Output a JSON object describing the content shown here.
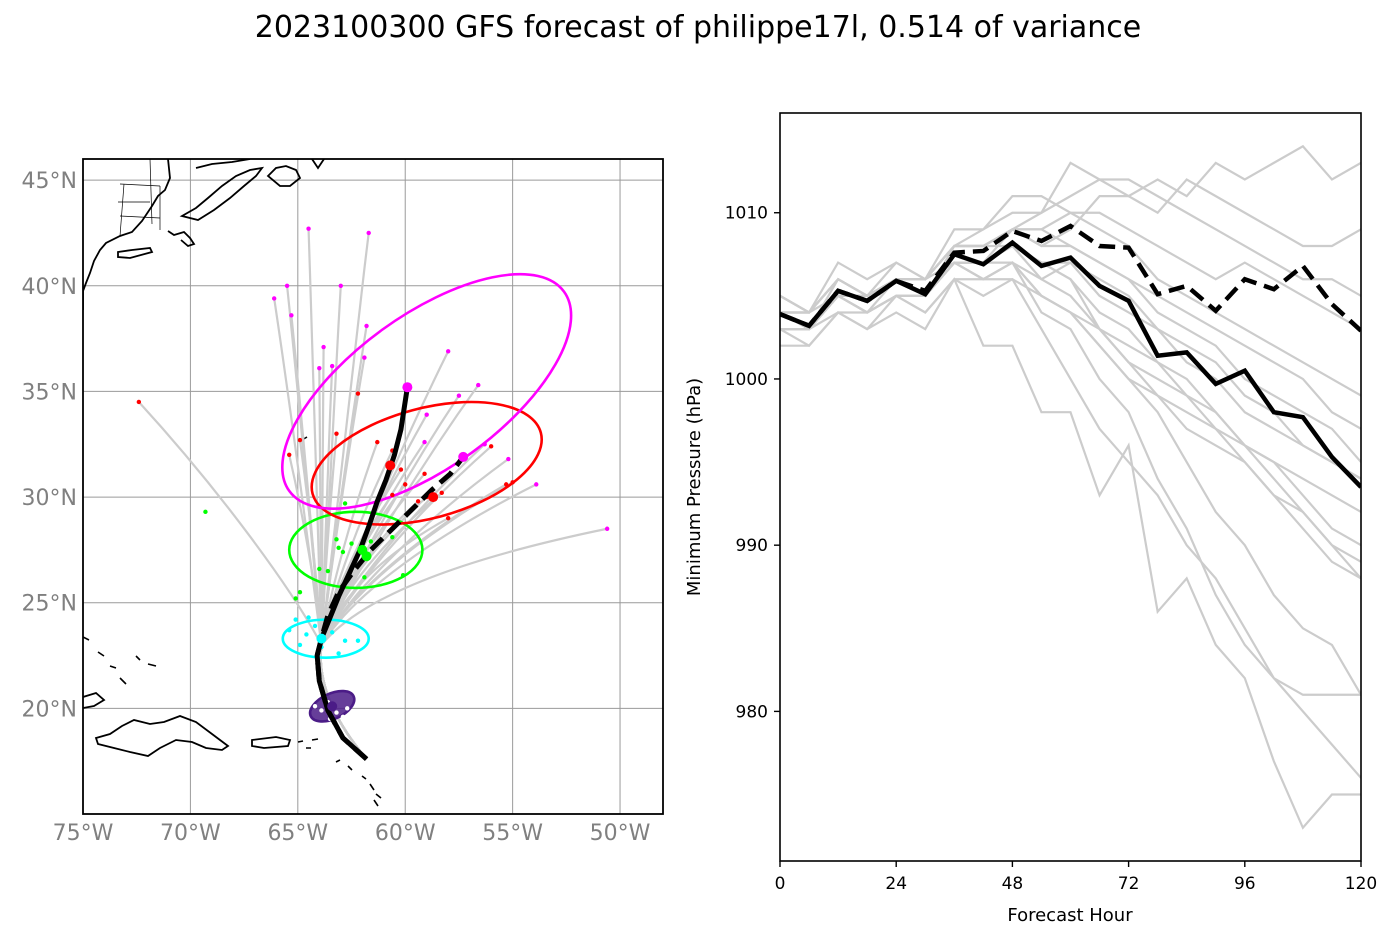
{
  "title": "2023100300 GFS forecast of philippe17l, 0.514 of variance",
  "colors": {
    "ensemble": "#cccccc",
    "mean": "#000000",
    "land": "#000000",
    "grid": "#9a9a9a",
    "tick_text": "#808080",
    "f24": "#4b1c87",
    "f48": "#00ffff",
    "f72": "#00ff00",
    "f96": "#ff0000",
    "f120": "#ff00ff"
  },
  "chart_data": [
    {
      "type": "scatter",
      "subtype": "track-map",
      "projection": "PlateCarree",
      "xlim": [
        -75,
        -48
      ],
      "ylim": [
        15,
        46
      ],
      "x_ticks": [
        -75,
        -70,
        -65,
        -60,
        -55,
        -50
      ],
      "x_tick_labels": [
        "75°W",
        "70°W",
        "65°W",
        "60°W",
        "55°W",
        "50°W"
      ],
      "y_ticks": [
        20,
        25,
        30,
        35,
        40,
        45
      ],
      "y_tick_labels": [
        "20°N",
        "25°N",
        "30°N",
        "35°N",
        "40°N",
        "45°N"
      ],
      "grid": true,
      "mean_tracks": [
        {
          "style": "solid",
          "points": [
            [
              -61.8,
              17.6
            ],
            [
              -62.9,
              18.6
            ],
            [
              -63.6,
              19.9
            ],
            [
              -64.0,
              21.3
            ],
            [
              -64.1,
              22.5
            ],
            [
              -63.9,
              23.3
            ],
            [
              -63.5,
              24.3
            ],
            [
              -63.1,
              25.3
            ],
            [
              -62.6,
              26.4
            ],
            [
              -62.1,
              27.5
            ],
            [
              -61.7,
              28.6
            ],
            [
              -61.3,
              29.8
            ],
            [
              -60.9,
              30.8
            ],
            [
              -60.5,
              32.0
            ],
            [
              -60.2,
              33.2
            ],
            [
              -59.9,
              35.2
            ]
          ]
        },
        {
          "style": "dashed",
          "points": [
            [
              -61.8,
              17.6
            ],
            [
              -62.9,
              18.6
            ],
            [
              -63.6,
              19.9
            ],
            [
              -64.0,
              21.3
            ],
            [
              -64.1,
              22.5
            ],
            [
              -63.9,
              23.3
            ],
            [
              -63.6,
              24.4
            ],
            [
              -63.1,
              25.5
            ],
            [
              -62.4,
              26.5
            ],
            [
              -61.6,
              27.5
            ],
            [
              -60.7,
              28.4
            ],
            [
              -59.8,
              29.3
            ],
            [
              -58.8,
              30.3
            ],
            [
              -57.9,
              31.1
            ],
            [
              -57.3,
              31.9
            ]
          ]
        }
      ],
      "mean_points": [
        {
          "hour": 24,
          "color": "#4b1c87",
          "lonlat": [
            -63.4,
            20.1
          ]
        },
        {
          "hour": 48,
          "color": "#00ffff",
          "lonlat": [
            -63.9,
            23.3
          ]
        },
        {
          "hour": 72,
          "color": "#00ff00",
          "lonlat": [
            -62.0,
            27.5
          ]
        },
        {
          "hour": 72,
          "color": "#00ff00",
          "lonlat": [
            -61.8,
            27.2
          ]
        },
        {
          "hour": 96,
          "color": "#ff0000",
          "lonlat": [
            -60.7,
            31.5
          ]
        },
        {
          "hour": 96,
          "color": "#ff0000",
          "lonlat": [
            -58.7,
            30.0
          ]
        },
        {
          "hour": 120,
          "color": "#ff00ff",
          "lonlat": [
            -59.9,
            35.2
          ]
        },
        {
          "hour": 120,
          "color": "#ff00ff",
          "lonlat": [
            -57.3,
            31.9
          ]
        }
      ],
      "ellipses": [
        {
          "hour": 24,
          "color": "#4b1c87",
          "center": [
            -63.4,
            20.1
          ],
          "semi_axes_deg": [
            1.1,
            0.6
          ],
          "rotation_deg": -25,
          "filled": true
        },
        {
          "hour": 48,
          "color": "#00ffff",
          "center": [
            -63.7,
            23.3
          ],
          "semi_axes_deg": [
            2.0,
            0.9
          ],
          "rotation_deg": 0,
          "filled": false
        },
        {
          "hour": 72,
          "color": "#00ff00",
          "center": [
            -62.3,
            27.5
          ],
          "semi_axes_deg": [
            3.1,
            1.8
          ],
          "rotation_deg": 0,
          "filled": false
        },
        {
          "hour": 96,
          "color": "#ff0000",
          "center": [
            -59.0,
            31.6
          ],
          "semi_axes_deg": [
            5.5,
            2.6
          ],
          "rotation_deg": -15,
          "filled": false
        },
        {
          "hour": 120,
          "color": "#ff00ff",
          "center": [
            -59.0,
            35.0
          ],
          "semi_axes_deg": [
            7.9,
            3.6
          ],
          "rotation_deg": -36,
          "filled": false
        }
      ],
      "member_points": [
        {
          "hour": 24,
          "color": "#4b1c87",
          "points": [
            [
              -64.1,
              20.6
            ],
            [
              -63.6,
              20.3
            ],
            [
              -63.2,
              19.8
            ],
            [
              -62.9,
              19.6
            ],
            [
              -64.2,
              20.1
            ],
            [
              -63.5,
              19.5
            ],
            [
              -62.7,
              20.0
            ],
            [
              -63.9,
              19.9
            ]
          ]
        },
        {
          "hour": 48,
          "color": "#00ffff",
          "points": [
            [
              -65.4,
              23.7
            ],
            [
              -65.1,
              24.2
            ],
            [
              -64.6,
              23.5
            ],
            [
              -64.2,
              23.9
            ],
            [
              -63.9,
              22.9
            ],
            [
              -63.4,
              23.6
            ],
            [
              -62.8,
              23.2
            ],
            [
              -62.2,
              23.2
            ],
            [
              -64.9,
              23.0
            ],
            [
              -63.1,
              22.6
            ],
            [
              -64.5,
              24.3
            ],
            [
              -63.6,
              24.0
            ]
          ]
        },
        {
          "hour": 72,
          "color": "#00ff00",
          "points": [
            [
              -69.3,
              29.3
            ],
            [
              -65.1,
              25.2
            ],
            [
              -64.9,
              25.5
            ],
            [
              -64.0,
              26.6
            ],
            [
              -63.6,
              26.5
            ],
            [
              -63.2,
              28.0
            ],
            [
              -63.1,
              27.6
            ],
            [
              -62.8,
              29.7
            ],
            [
              -62.5,
              27.8
            ],
            [
              -61.9,
              26.2
            ],
            [
              -60.6,
              28.1
            ],
            [
              -60.1,
              26.3
            ],
            [
              -62.9,
              27.4
            ],
            [
              -61.6,
              27.9
            ]
          ]
        },
        {
          "hour": 96,
          "color": "#ff0000",
          "points": [
            [
              -72.4,
              34.5
            ],
            [
              -65.4,
              32.0
            ],
            [
              -64.9,
              32.7
            ],
            [
              -63.2,
              33.0
            ],
            [
              -62.2,
              34.9
            ],
            [
              -61.3,
              32.6
            ],
            [
              -60.6,
              32.2
            ],
            [
              -60.2,
              31.3
            ],
            [
              -60.0,
              30.6
            ],
            [
              -59.4,
              29.8
            ],
            [
              -59.0,
              30.0
            ],
            [
              -58.3,
              30.2
            ],
            [
              -58.0,
              29.0
            ],
            [
              -56.0,
              32.4
            ],
            [
              -55.3,
              30.6
            ],
            [
              -55.0,
              30.7
            ],
            [
              -59.1,
              31.1
            ],
            [
              -60.6,
              30.1
            ]
          ]
        },
        {
          "hour": 120,
          "color": "#ff00ff",
          "points": [
            [
              -64.5,
              42.7
            ],
            [
              -61.7,
              42.5
            ],
            [
              -65.5,
              40.0
            ],
            [
              -65.3,
              38.6
            ],
            [
              -66.1,
              39.4
            ],
            [
              -63.8,
              37.1
            ],
            [
              -64.0,
              36.1
            ],
            [
              -63.4,
              36.2
            ],
            [
              -61.8,
              38.1
            ],
            [
              -61.9,
              36.6
            ],
            [
              -58.0,
              36.9
            ],
            [
              -56.6,
              35.3
            ],
            [
              -57.5,
              34.8
            ],
            [
              -59.0,
              33.9
            ],
            [
              -59.1,
              32.6
            ],
            [
              -56.3,
              32.5
            ],
            [
              -55.2,
              31.8
            ],
            [
              -53.9,
              30.6
            ],
            [
              -50.6,
              28.5
            ],
            [
              -63.0,
              40.0
            ]
          ]
        }
      ],
      "coastlines": "Atlantic coast of North America, Nova Scotia, Cuba, Hispaniola, Puerto Rico, Lesser Antilles"
    },
    {
      "type": "line",
      "xlabel": "Forecast Hour",
      "ylabel": "Minimum Pressure (hPa)",
      "xlim": [
        0,
        120
      ],
      "ylim": [
        971,
        1016
      ],
      "x_ticks": [
        0,
        24,
        48,
        72,
        96,
        120
      ],
      "y_ticks": [
        980,
        990,
        1000,
        1010
      ],
      "grid": false,
      "x": [
        0,
        6,
        12,
        18,
        24,
        30,
        36,
        42,
        48,
        54,
        60,
        66,
        72,
        78,
        84,
        90,
        96,
        102,
        108,
        114,
        120
      ],
      "mean_solid": [
        1003.9,
        1003.2,
        1005.3,
        1004.7,
        1005.9,
        1005.1,
        1007.5,
        1006.9,
        1008.2,
        1006.8,
        1007.3,
        1005.6,
        1004.7,
        1001.4,
        1001.6,
        999.7,
        1000.5,
        998.0,
        997.7,
        995.3,
        993.5
      ],
      "mean_dashed": [
        1003.9,
        1003.2,
        1005.3,
        1004.7,
        1005.9,
        1005.3,
        1007.6,
        1007.7,
        1008.9,
        1008.3,
        1009.2,
        1008.0,
        1007.9,
        1005.1,
        1005.6,
        1004.1,
        1006.0,
        1005.4,
        1006.8,
        1004.5,
        1002.9
      ],
      "ensemble": [
        [
          1005,
          1004,
          1006,
          1005,
          1006,
          1006,
          1008,
          1008,
          1009,
          1010,
          1011,
          1012,
          1012,
          1011,
          1010,
          1009,
          1008,
          1007,
          1006,
          1006,
          1005
        ],
        [
          1004,
          1004,
          1006,
          1005,
          1007,
          1006,
          1008,
          1009,
          1010,
          1010,
          1013,
          1012,
          1011,
          1012,
          1011,
          1013,
          1012,
          1013,
          1014,
          1012,
          1013
        ],
        [
          1004,
          1003,
          1005,
          1005,
          1006,
          1005,
          1008,
          1008,
          1009,
          1008,
          1009,
          1011,
          1011,
          1010,
          1012,
          1011,
          1010,
          1009,
          1008,
          1008,
          1009
        ],
        [
          1004,
          1003,
          1006,
          1005,
          1006,
          1006,
          1007,
          1007,
          1009,
          1009,
          1010,
          1010,
          1009,
          1008,
          1007,
          1006,
          1007,
          1006,
          1005,
          1004,
          1003
        ],
        [
          1003,
          1003,
          1005,
          1004,
          1005,
          1005,
          1007,
          1007,
          1007,
          1005,
          1004,
          1003,
          1001,
          999,
          998,
          997,
          996,
          995,
          994,
          993,
          992
        ],
        [
          1003,
          1002,
          1004,
          1003,
          1004,
          1003,
          1006,
          1005,
          1006,
          1005,
          1004,
          1002,
          1000,
          998,
          995,
          992,
          990,
          987,
          985,
          984,
          981
        ],
        [
          1002,
          1002,
          1004,
          1003,
          1005,
          1004,
          1006,
          1002,
          1002,
          998,
          998,
          993,
          996,
          986,
          988,
          984,
          982,
          977,
          973,
          975,
          975
        ],
        [
          1003,
          1003,
          1004,
          1004,
          1005,
          1004,
          1006,
          1006,
          1007,
          1004,
          1003,
          1000,
          998,
          994,
          991,
          987,
          984,
          982,
          980,
          978,
          976
        ],
        [
          1004,
          1003,
          1005,
          1004,
          1005,
          1005,
          1007,
          1006,
          1006,
          1003,
          1000,
          997,
          995,
          993,
          990,
          988,
          985,
          982,
          981,
          981,
          981
        ],
        [
          1005,
          1004,
          1006,
          1005,
          1006,
          1006,
          1008,
          1008,
          1008,
          1007,
          1006,
          1003,
          1001,
          1000,
          999,
          998,
          996,
          994,
          992,
          990,
          988
        ],
        [
          1004,
          1004,
          1005,
          1005,
          1006,
          1005,
          1007,
          1007,
          1008,
          1006,
          1005,
          1003,
          1002,
          1001,
          1000,
          998,
          996,
          995,
          993,
          991,
          990
        ],
        [
          1003,
          1003,
          1005,
          1004,
          1006,
          1005,
          1007,
          1006,
          1007,
          1006,
          1007,
          1006,
          1005,
          1003,
          1002,
          1001,
          999,
          998,
          996,
          995,
          994
        ],
        [
          1004,
          1003,
          1005,
          1004,
          1005,
          1005,
          1007,
          1006,
          1007,
          1005,
          1004,
          1002,
          1000,
          999,
          997,
          996,
          995,
          993,
          992,
          990,
          989
        ],
        [
          1005,
          1004,
          1007,
          1006,
          1007,
          1006,
          1009,
          1009,
          1011,
          1011,
          1010,
          1009,
          1008,
          1006,
          1005,
          1004,
          1003,
          1002,
          1001,
          1000,
          999
        ],
        [
          1004,
          1004,
          1006,
          1005,
          1006,
          1006,
          1008,
          1008,
          1009,
          1008,
          1008,
          1007,
          1006,
          1004,
          1003,
          1002,
          1000,
          999,
          998,
          997,
          995
        ],
        [
          1003,
          1003,
          1005,
          1004,
          1005,
          1005,
          1007,
          1007,
          1008,
          1007,
          1006,
          1004,
          1003,
          1001,
          999,
          997,
          995,
          993,
          991,
          989,
          988
        ],
        [
          1004,
          1003,
          1005,
          1005,
          1006,
          1005,
          1007,
          1007,
          1008,
          1007,
          1007,
          1005,
          1004,
          1003,
          1001,
          1000,
          998,
          997,
          996,
          995,
          994
        ],
        [
          1005,
          1004,
          1006,
          1005,
          1006,
          1006,
          1008,
          1008,
          1009,
          1009,
          1008,
          1007,
          1006,
          1005,
          1004,
          1003,
          1002,
          1001,
          1000,
          998,
          997
        ]
      ]
    }
  ]
}
